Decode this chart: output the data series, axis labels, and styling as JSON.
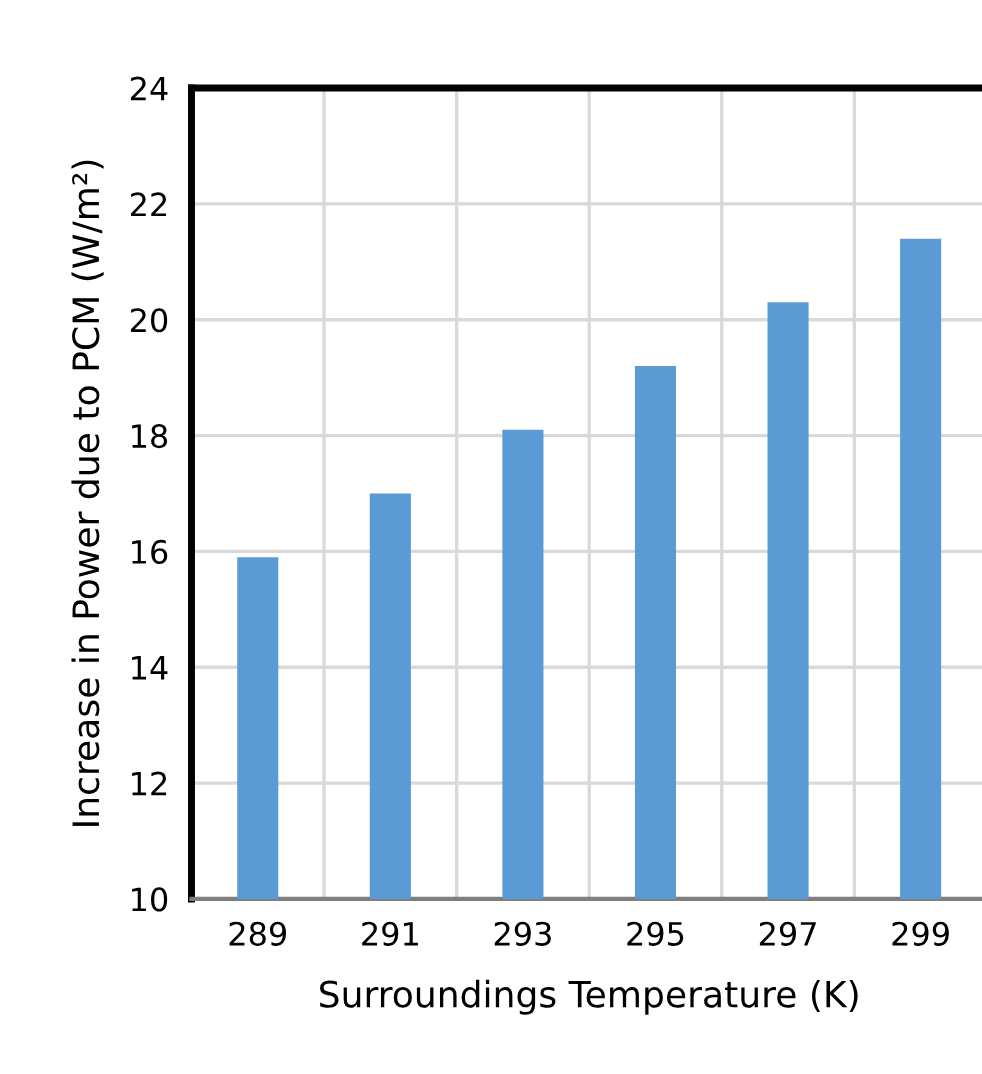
{
  "chart_data": {
    "type": "bar",
    "xlabel": "Surroundings Temperature (K)",
    "ylabel": "Increase in Power due to PCM (W/m²)",
    "categories": [
      "289",
      "291",
      "293",
      "295",
      "297",
      "299"
    ],
    "values": [
      15.9,
      17.0,
      18.1,
      19.2,
      20.3,
      21.4
    ],
    "color": "#5b9bd5",
    "ylim": [
      10,
      24
    ],
    "yticks": [
      10,
      12,
      14,
      16,
      18,
      20,
      22,
      24
    ],
    "grid": true
  }
}
